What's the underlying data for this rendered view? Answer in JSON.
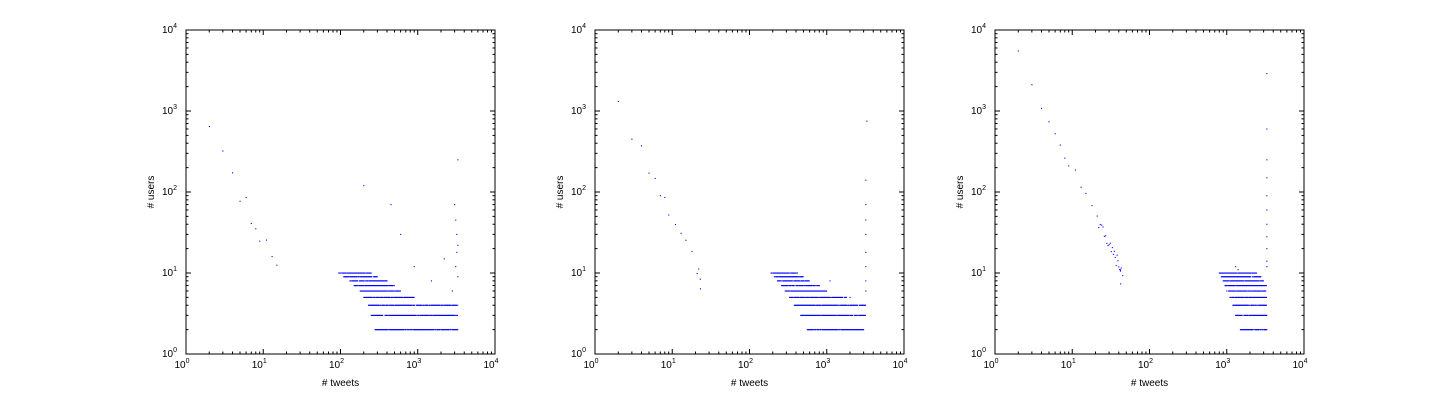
{
  "chart_data": [
    {
      "type": "scatter",
      "title": "",
      "xlabel": "# tweets",
      "ylabel": "# users",
      "xscale": "log",
      "yscale": "log",
      "xlim": [
        1,
        10000
      ],
      "ylim": [
        1,
        10000
      ],
      "x_ticks": [
        "10^0",
        "10^1",
        "10^2",
        "10^3",
        "10^4"
      ],
      "y_ticks": [
        "10^0",
        "10^1",
        "10^2",
        "10^3",
        "10^4"
      ],
      "grid": false,
      "legend": "none",
      "marker_color": "#0000ff",
      "head": {
        "x_start": 2,
        "y_start": 600,
        "exponent": 1.95,
        "noise": 0.12,
        "scatter_low_from": 15
      },
      "levels": [
        {
          "y": 2,
          "x_from": 280,
          "x_to": 3300
        },
        {
          "y": 3,
          "x_from": 250,
          "x_to": 3300
        },
        {
          "y": 4,
          "x_from": 230,
          "x_to": 3300
        },
        {
          "y": 5,
          "x_from": 200,
          "x_to": 900
        },
        {
          "y": 6,
          "x_from": 180,
          "x_to": 600
        },
        {
          "y": 7,
          "x_from": 150,
          "x_to": 500
        },
        {
          "y": 8,
          "x_from": 130,
          "x_to": 400
        },
        {
          "y": 9,
          "x_from": 110,
          "x_to": 300
        },
        {
          "y": 10,
          "x_from": 95,
          "x_to": 250
        }
      ],
      "outliers": [
        {
          "x": 3300,
          "y": 250
        },
        {
          "x": 3000,
          "y": 70
        },
        {
          "x": 3100,
          "y": 45
        },
        {
          "x": 3200,
          "y": 30
        },
        {
          "x": 3300,
          "y": 22
        },
        {
          "x": 3200,
          "y": 18
        },
        {
          "x": 3100,
          "y": 12
        },
        {
          "x": 3300,
          "y": 9
        },
        {
          "x": 2800,
          "y": 6
        },
        {
          "x": 200,
          "y": 120
        },
        {
          "x": 450,
          "y": 70
        },
        {
          "x": 600,
          "y": 30
        },
        {
          "x": 900,
          "y": 12
        },
        {
          "x": 1500,
          "y": 8
        },
        {
          "x": 2200,
          "y": 15
        }
      ]
    },
    {
      "type": "scatter",
      "title": "",
      "xlabel": "# tweets",
      "ylabel": "# users",
      "xscale": "log",
      "yscale": "log",
      "xlim": [
        1,
        10000
      ],
      "ylim": [
        1,
        10000
      ],
      "x_ticks": [
        "10^0",
        "10^1",
        "10^2",
        "10^3",
        "10^4"
      ],
      "y_ticks": [
        "10^0",
        "10^1",
        "10^2",
        "10^3",
        "10^4"
      ],
      "grid": false,
      "legend": "none",
      "marker_color": "#0000ff",
      "head": {
        "x_start": 2,
        "y_start": 1200,
        "exponent": 1.95,
        "noise": 0.1,
        "scatter_low_from": 20
      },
      "levels": [
        {
          "y": 2,
          "x_from": 560,
          "x_to": 3200
        },
        {
          "y": 3,
          "x_from": 460,
          "x_to": 3200
        },
        {
          "y": 4,
          "x_from": 380,
          "x_to": 3200
        },
        {
          "y": 5,
          "x_from": 330,
          "x_to": 1800
        },
        {
          "y": 6,
          "x_from": 290,
          "x_to": 1000
        },
        {
          "y": 7,
          "x_from": 260,
          "x_to": 800
        },
        {
          "y": 8,
          "x_from": 230,
          "x_to": 600
        },
        {
          "y": 9,
          "x_from": 210,
          "x_to": 500
        },
        {
          "y": 10,
          "x_from": 190,
          "x_to": 420
        }
      ],
      "outliers": [
        {
          "x": 3300,
          "y": 750
        },
        {
          "x": 3200,
          "y": 140
        },
        {
          "x": 3200,
          "y": 70
        },
        {
          "x": 3200,
          "y": 45
        },
        {
          "x": 3200,
          "y": 30
        },
        {
          "x": 3200,
          "y": 18
        },
        {
          "x": 3200,
          "y": 12
        },
        {
          "x": 3200,
          "y": 8
        },
        {
          "x": 3200,
          "y": 6
        },
        {
          "x": 1100,
          "y": 8
        },
        {
          "x": 2000,
          "y": 5
        }
      ]
    },
    {
      "type": "scatter",
      "title": "",
      "xlabel": "# tweets",
      "ylabel": "# users",
      "xscale": "log",
      "yscale": "log",
      "xlim": [
        1,
        10000
      ],
      "ylim": [
        1,
        10000
      ],
      "x_ticks": [
        "10^0",
        "10^1",
        "10^2",
        "10^3",
        "10^4"
      ],
      "y_ticks": [
        "10^0",
        "10^1",
        "10^2",
        "10^3",
        "10^4"
      ],
      "grid": false,
      "legend": "none",
      "marker_color": "#0000ff",
      "head": {
        "x_start": 2,
        "y_start": 5000,
        "exponent": 2.0,
        "noise": 0.08,
        "scatter_low_from": 40
      },
      "levels": [
        {
          "y": 2,
          "x_from": 1500,
          "x_to": 3300
        },
        {
          "y": 3,
          "x_from": 1300,
          "x_to": 3300
        },
        {
          "y": 4,
          "x_from": 1200,
          "x_to": 3300
        },
        {
          "y": 5,
          "x_from": 1100,
          "x_to": 3300
        },
        {
          "y": 6,
          "x_from": 1000,
          "x_to": 3300
        },
        {
          "y": 7,
          "x_from": 950,
          "x_to": 3300
        },
        {
          "y": 8,
          "x_from": 900,
          "x_to": 3000
        },
        {
          "y": 9,
          "x_from": 850,
          "x_to": 2800
        },
        {
          "y": 10,
          "x_from": 800,
          "x_to": 2500
        }
      ],
      "outliers": [
        {
          "x": 3300,
          "y": 2900
        },
        {
          "x": 3300,
          "y": 600
        },
        {
          "x": 3300,
          "y": 250
        },
        {
          "x": 3300,
          "y": 150
        },
        {
          "x": 3300,
          "y": 90
        },
        {
          "x": 3300,
          "y": 60
        },
        {
          "x": 3300,
          "y": 40
        },
        {
          "x": 3300,
          "y": 28
        },
        {
          "x": 3300,
          "y": 20
        },
        {
          "x": 3300,
          "y": 14
        },
        {
          "x": 3300,
          "y": 12
        },
        {
          "x": 1300,
          "y": 12
        },
        {
          "x": 1400,
          "y": 11
        }
      ]
    }
  ]
}
